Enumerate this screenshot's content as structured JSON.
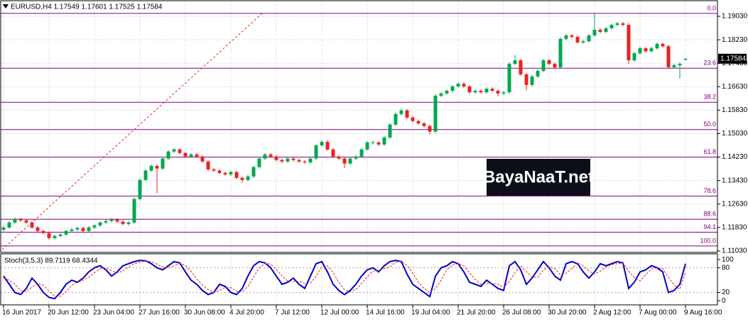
{
  "chart_data": [
    {
      "type": "candlestick",
      "title": "EURUSD,H4  1.17549 1.17601 1.17525 1.17584",
      "categories": [
        "16 Jun 2017",
        null,
        null,
        null,
        null,
        null,
        null,
        null,
        "20 Jun 12:00",
        null,
        null,
        null,
        null,
        null,
        null,
        null,
        "23 Jun 04:00",
        null,
        null,
        null,
        null,
        null,
        null,
        null,
        "27 Jun 16:00",
        null,
        null,
        null,
        null,
        null,
        null,
        null,
        "30 Jun 08:00",
        null,
        null,
        null,
        null,
        null,
        null,
        null,
        "4 Jul 20:00",
        null,
        null,
        null,
        null,
        null,
        null,
        null,
        "7 Jul 12:00",
        null,
        null,
        null,
        null,
        null,
        null,
        null,
        "12 Jul 00:00",
        null,
        null,
        null,
        null,
        null,
        null,
        null,
        "14 Jul 16:00",
        null,
        null,
        null,
        null,
        null,
        null,
        null,
        "19 Jul 04:00",
        null,
        null,
        null,
        null,
        null,
        null,
        null,
        "21 Jul 20:00",
        null,
        null,
        null,
        null,
        null,
        null,
        null,
        "26 Jul 08:00",
        null,
        null,
        null,
        null,
        null,
        null,
        null,
        "30 Jul 20:00",
        null,
        null,
        null,
        null,
        null,
        null,
        null,
        "2 Aug 12:00",
        null,
        null,
        null,
        null,
        null,
        null,
        null,
        "7 Aug 00:00",
        null,
        null,
        null,
        null,
        null,
        null,
        null,
        "9 Aug 16:00"
      ],
      "candles": [
        [
          1.1175,
          1.1188,
          1.117,
          1.1183
        ],
        [
          1.1183,
          1.1205,
          1.1178,
          1.12
        ],
        [
          1.12,
          1.1217,
          1.1195,
          1.1212
        ],
        [
          1.1212,
          1.1217,
          1.1202,
          1.1207
        ],
        [
          1.1207,
          1.1212,
          1.1195,
          1.12
        ],
        [
          1.12,
          1.1205,
          1.1178,
          1.1183
        ],
        [
          1.1183,
          1.1188,
          1.1166,
          1.1171
        ],
        [
          1.1171,
          1.1176,
          1.1159,
          1.1164
        ],
        [
          1.1164,
          1.1169,
          1.1142,
          1.1147
        ],
        [
          1.1147,
          1.1159,
          1.1142,
          1.1154
        ],
        [
          1.1154,
          1.1164,
          1.1149,
          1.1159
        ],
        [
          1.1159,
          1.1176,
          1.1154,
          1.1171
        ],
        [
          1.1171,
          1.1181,
          1.1166,
          1.1176
        ],
        [
          1.1176,
          1.1186,
          1.1171,
          1.1181
        ],
        [
          1.1181,
          1.1186,
          1.1166,
          1.1171
        ],
        [
          1.1171,
          1.1188,
          1.1166,
          1.1183
        ],
        [
          1.1183,
          1.1195,
          1.1178,
          1.119
        ],
        [
          1.119,
          1.1205,
          1.1185,
          1.12
        ],
        [
          1.12,
          1.121,
          1.1195,
          1.1205
        ],
        [
          1.1205,
          1.1215,
          1.12,
          1.121
        ],
        [
          1.121,
          1.1215,
          1.1198,
          1.1203
        ],
        [
          1.1203,
          1.1208,
          1.119,
          1.1195
        ],
        [
          1.1195,
          1.1205,
          1.119,
          1.12
        ],
        [
          1.12,
          1.1285,
          1.1195,
          1.128
        ],
        [
          1.128,
          1.135,
          1.1275,
          1.1345
        ],
        [
          1.1345,
          1.1382,
          1.134,
          1.1377
        ],
        [
          1.1377,
          1.1398,
          1.1372,
          1.1393
        ],
        [
          1.1393,
          1.1398,
          1.13,
          1.1384
        ],
        [
          1.1384,
          1.1423,
          1.1379,
          1.1418
        ],
        [
          1.1418,
          1.1447,
          1.1413,
          1.1442
        ],
        [
          1.1442,
          1.1454,
          1.1437,
          1.1449
        ],
        [
          1.1449,
          1.1454,
          1.1432,
          1.1437
        ],
        [
          1.1437,
          1.1442,
          1.142,
          1.1425
        ],
        [
          1.1425,
          1.1437,
          1.142,
          1.1432
        ],
        [
          1.1432,
          1.1437,
          1.142,
          1.1425
        ],
        [
          1.1425,
          1.143,
          1.1403,
          1.1408
        ],
        [
          1.1408,
          1.1413,
          1.1376,
          1.1381
        ],
        [
          1.1381,
          1.1386,
          1.1372,
          1.1377
        ],
        [
          1.1377,
          1.1382,
          1.1364,
          1.1369
        ],
        [
          1.1369,
          1.1374,
          1.1359,
          1.1364
        ],
        [
          1.1364,
          1.1377,
          1.1359,
          1.1372
        ],
        [
          1.1372,
          1.1377,
          1.1347,
          1.1352
        ],
        [
          1.1352,
          1.1357,
          1.1335,
          1.1345
        ],
        [
          1.1345,
          1.1362,
          1.134,
          1.1357
        ],
        [
          1.1357,
          1.1394,
          1.1352,
          1.1389
        ],
        [
          1.1389,
          1.1423,
          1.1384,
          1.1418
        ],
        [
          1.1418,
          1.1437,
          1.1413,
          1.1432
        ],
        [
          1.1432,
          1.1437,
          1.142,
          1.1425
        ],
        [
          1.1425,
          1.143,
          1.1408,
          1.1413
        ],
        [
          1.1413,
          1.1418,
          1.1403,
          1.1408
        ],
        [
          1.1408,
          1.1423,
          1.1403,
          1.1418
        ],
        [
          1.1418,
          1.1423,
          1.1408,
          1.1413
        ],
        [
          1.1413,
          1.1418,
          1.1403,
          1.1408
        ],
        [
          1.1408,
          1.1413,
          1.14,
          1.1405
        ],
        [
          1.1405,
          1.1423,
          1.14,
          1.1418
        ],
        [
          1.1418,
          1.1468,
          1.1413,
          1.1463
        ],
        [
          1.1463,
          1.148,
          1.1458,
          1.1475
        ],
        [
          1.1475,
          1.148,
          1.1444,
          1.1449
        ],
        [
          1.1449,
          1.1454,
          1.142,
          1.1425
        ],
        [
          1.1425,
          1.143,
          1.1413,
          1.1418
        ],
        [
          1.1418,
          1.1423,
          1.1385,
          1.1401
        ],
        [
          1.1401,
          1.1423,
          1.1396,
          1.1418
        ],
        [
          1.1418,
          1.143,
          1.1413,
          1.1425
        ],
        [
          1.1425,
          1.1454,
          1.142,
          1.1449
        ],
        [
          1.1449,
          1.1478,
          1.1444,
          1.1473
        ],
        [
          1.1473,
          1.148,
          1.1466,
          1.1473
        ],
        [
          1.1473,
          1.1478,
          1.1461,
          1.1466
        ],
        [
          1.1466,
          1.1495,
          1.1461,
          1.149
        ],
        [
          1.149,
          1.1539,
          1.1485,
          1.1534
        ],
        [
          1.1534,
          1.1575,
          1.1529,
          1.157
        ],
        [
          1.157,
          1.159,
          1.1565,
          1.1582
        ],
        [
          1.1582,
          1.1587,
          1.1553,
          1.1558
        ],
        [
          1.1558,
          1.1563,
          1.1541,
          1.1546
        ],
        [
          1.1546,
          1.1551,
          1.1533,
          1.1538
        ],
        [
          1.1538,
          1.1543,
          1.1524,
          1.1529
        ],
        [
          1.1529,
          1.1534,
          1.15,
          1.151
        ],
        [
          1.151,
          1.1637,
          1.1505,
          1.1632
        ],
        [
          1.1632,
          1.1645,
          1.1627,
          1.164
        ],
        [
          1.164,
          1.1654,
          1.1635,
          1.1649
        ],
        [
          1.1649,
          1.1669,
          1.1644,
          1.1664
        ],
        [
          1.1664,
          1.1678,
          1.1659,
          1.1673
        ],
        [
          1.1673,
          1.1678,
          1.1659,
          1.1664
        ],
        [
          1.1664,
          1.1669,
          1.1639,
          1.1644
        ],
        [
          1.1644,
          1.1654,
          1.1639,
          1.1649
        ],
        [
          1.1649,
          1.1654,
          1.1639,
          1.1644
        ],
        [
          1.1644,
          1.1661,
          1.1639,
          1.1656
        ],
        [
          1.1656,
          1.1661,
          1.1644,
          1.1649
        ],
        [
          1.1649,
          1.1654,
          1.163,
          1.164
        ],
        [
          1.164,
          1.1649,
          1.1635,
          1.1644
        ],
        [
          1.1644,
          1.1746,
          1.1639,
          1.1741
        ],
        [
          1.1741,
          1.177,
          1.1736,
          1.1753
        ],
        [
          1.1753,
          1.1758,
          1.17,
          1.1705
        ],
        [
          1.1705,
          1.171,
          1.165,
          1.1669
        ],
        [
          1.1669,
          1.1703,
          1.1664,
          1.1698
        ],
        [
          1.1698,
          1.1722,
          1.1693,
          1.1717
        ],
        [
          1.1717,
          1.1758,
          1.1712,
          1.1753
        ],
        [
          1.1753,
          1.1758,
          1.1736,
          1.1741
        ],
        [
          1.1741,
          1.1746,
          1.1724,
          1.1729
        ],
        [
          1.1729,
          1.1831,
          1.1724,
          1.1826
        ],
        [
          1.1826,
          1.1843,
          1.1821,
          1.1838
        ],
        [
          1.1838,
          1.1843,
          1.1828,
          1.1833
        ],
        [
          1.1833,
          1.1838,
          1.1809,
          1.1814
        ],
        [
          1.1814,
          1.1823,
          1.1809,
          1.1818
        ],
        [
          1.1818,
          1.1843,
          1.1813,
          1.1838
        ],
        [
          1.1838,
          1.1912,
          1.1833,
          1.1857
        ],
        [
          1.1857,
          1.1862,
          1.1845,
          1.185
        ],
        [
          1.185,
          1.1867,
          1.1845,
          1.1862
        ],
        [
          1.1862,
          1.1879,
          1.1857,
          1.1874
        ],
        [
          1.1874,
          1.1884,
          1.1869,
          1.1879
        ],
        [
          1.1879,
          1.1884,
          1.1869,
          1.1874
        ],
        [
          1.1874,
          1.1879,
          1.174,
          1.1753
        ],
        [
          1.1753,
          1.1782,
          1.1748,
          1.1777
        ],
        [
          1.1777,
          1.1799,
          1.1772,
          1.1794
        ],
        [
          1.1794,
          1.1799,
          1.1779,
          1.1784
        ],
        [
          1.1784,
          1.1799,
          1.1779,
          1.1794
        ],
        [
          1.1794,
          1.1814,
          1.1789,
          1.1809
        ],
        [
          1.1809,
          1.1814,
          1.1796,
          1.1801
        ],
        [
          1.1801,
          1.1806,
          1.1724,
          1.1729
        ],
        [
          1.1729,
          1.1741,
          1.1724,
          1.1736
        ],
        [
          1.1736,
          1.1746,
          1.169,
          1.1741
        ],
        [
          1.17549,
          1.17601,
          1.17525,
          1.17584
        ]
      ],
      "up_color": "#00a84f",
      "down_color": "#e8231f",
      "ylim": [
        1.1098,
        1.1949
      ],
      "yticks": [
        {
          "value": 1.1103,
          "label": "1.11030"
        },
        {
          "value": 1.1183,
          "label": "1.11830"
        },
        {
          "value": 1.1263,
          "label": "1.12630"
        },
        {
          "value": 1.1343,
          "label": "1.13430"
        },
        {
          "value": 1.1423,
          "label": "1.14230"
        },
        {
          "value": 1.1503,
          "label": "1.15030"
        },
        {
          "value": 1.1583,
          "label": "1.15830"
        },
        {
          "value": 1.1663,
          "label": "1.16630"
        },
        {
          "value": 1.1743,
          "label": "1.17430"
        },
        {
          "value": 1.1823,
          "label": "1.18230"
        },
        {
          "value": 1.1903,
          "label": "1.19030"
        }
      ],
      "grid": true,
      "current_price": 1.17584,
      "fib_color": "#800080",
      "fib_levels": [
        {
          "value": 1.1913,
          "label": "0.0"
        },
        {
          "value": 1.1726,
          "label": "23.6"
        },
        {
          "value": 1.161,
          "label": "38.2"
        },
        {
          "value": 1.1517,
          "label": "50.0"
        },
        {
          "value": 1.1423,
          "label": "61.8"
        },
        {
          "value": 1.129,
          "label": "78.6"
        },
        {
          "value": 1.1211,
          "label": "88.6"
        },
        {
          "value": 1.1167,
          "label": "94.1"
        },
        {
          "value": 1.112,
          "label": "100.0"
        }
      ],
      "watermark": "BayaNaaT.net"
    },
    {
      "type": "line",
      "title": "Stoch(3,5,3) 89.7119 68.4344",
      "ylim": [
        -10,
        114
      ],
      "yticks": [
        0,
        20,
        80,
        100
      ],
      "levels": [
        20,
        80
      ],
      "series": [
        {
          "color": "#0000c8",
          "style": "solid",
          "values": [
            60,
            40,
            20,
            15,
            30,
            55,
            40,
            20,
            8,
            5,
            20,
            40,
            50,
            45,
            55,
            70,
            80,
            85,
            75,
            60,
            70,
            85,
            90,
            95,
            98,
            97,
            90,
            80,
            75,
            85,
            95,
            92,
            70,
            50,
            40,
            25,
            15,
            20,
            40,
            35,
            20,
            15,
            30,
            60,
            85,
            95,
            92,
            80,
            60,
            40,
            45,
            55,
            40,
            30,
            60,
            90,
            95,
            70,
            40,
            25,
            15,
            25,
            40,
            60,
            75,
            80,
            70,
            85,
            95,
            98,
            95,
            65,
            40,
            30,
            20,
            10,
            60,
            80,
            85,
            95,
            90,
            70,
            45,
            40,
            35,
            50,
            40,
            30,
            25,
            85,
            95,
            75,
            40,
            55,
            75,
            95,
            80,
            60,
            50,
            90,
            95,
            90,
            70,
            55,
            70,
            90,
            85,
            90,
            95,
            92,
            30,
            45,
            70,
            75,
            85,
            80,
            70,
            20,
            25,
            40,
            89.7119
          ]
        },
        {
          "color": "#e8231f",
          "style": "dashed",
          "values": [
            55,
            50,
            40,
            25,
            22,
            33,
            42,
            38,
            23,
            11,
            11,
            22,
            37,
            45,
            50,
            57,
            68,
            78,
            80,
            73,
            68,
            72,
            82,
            90,
            94,
            97,
            95,
            89,
            82,
            80,
            85,
            91,
            86,
            71,
            53,
            38,
            27,
            20,
            25,
            32,
            32,
            23,
            22,
            35,
            58,
            80,
            91,
            89,
            77,
            60,
            48,
            47,
            47,
            42,
            43,
            60,
            82,
            85,
            68,
            45,
            27,
            22,
            27,
            42,
            58,
            72,
            75,
            78,
            83,
            93,
            96,
            86,
            67,
            45,
            30,
            20,
            30,
            50,
            75,
            87,
            90,
            85,
            68,
            52,
            40,
            42,
            42,
            40,
            32,
            47,
            68,
            85,
            70,
            57,
            57,
            75,
            83,
            78,
            63,
            67,
            78,
            92,
            85,
            72,
            65,
            72,
            82,
            88,
            90,
            92,
            72,
            56,
            48,
            63,
            77,
            80,
            78,
            57,
            38,
            28,
            68.4344
          ]
        }
      ]
    }
  ]
}
